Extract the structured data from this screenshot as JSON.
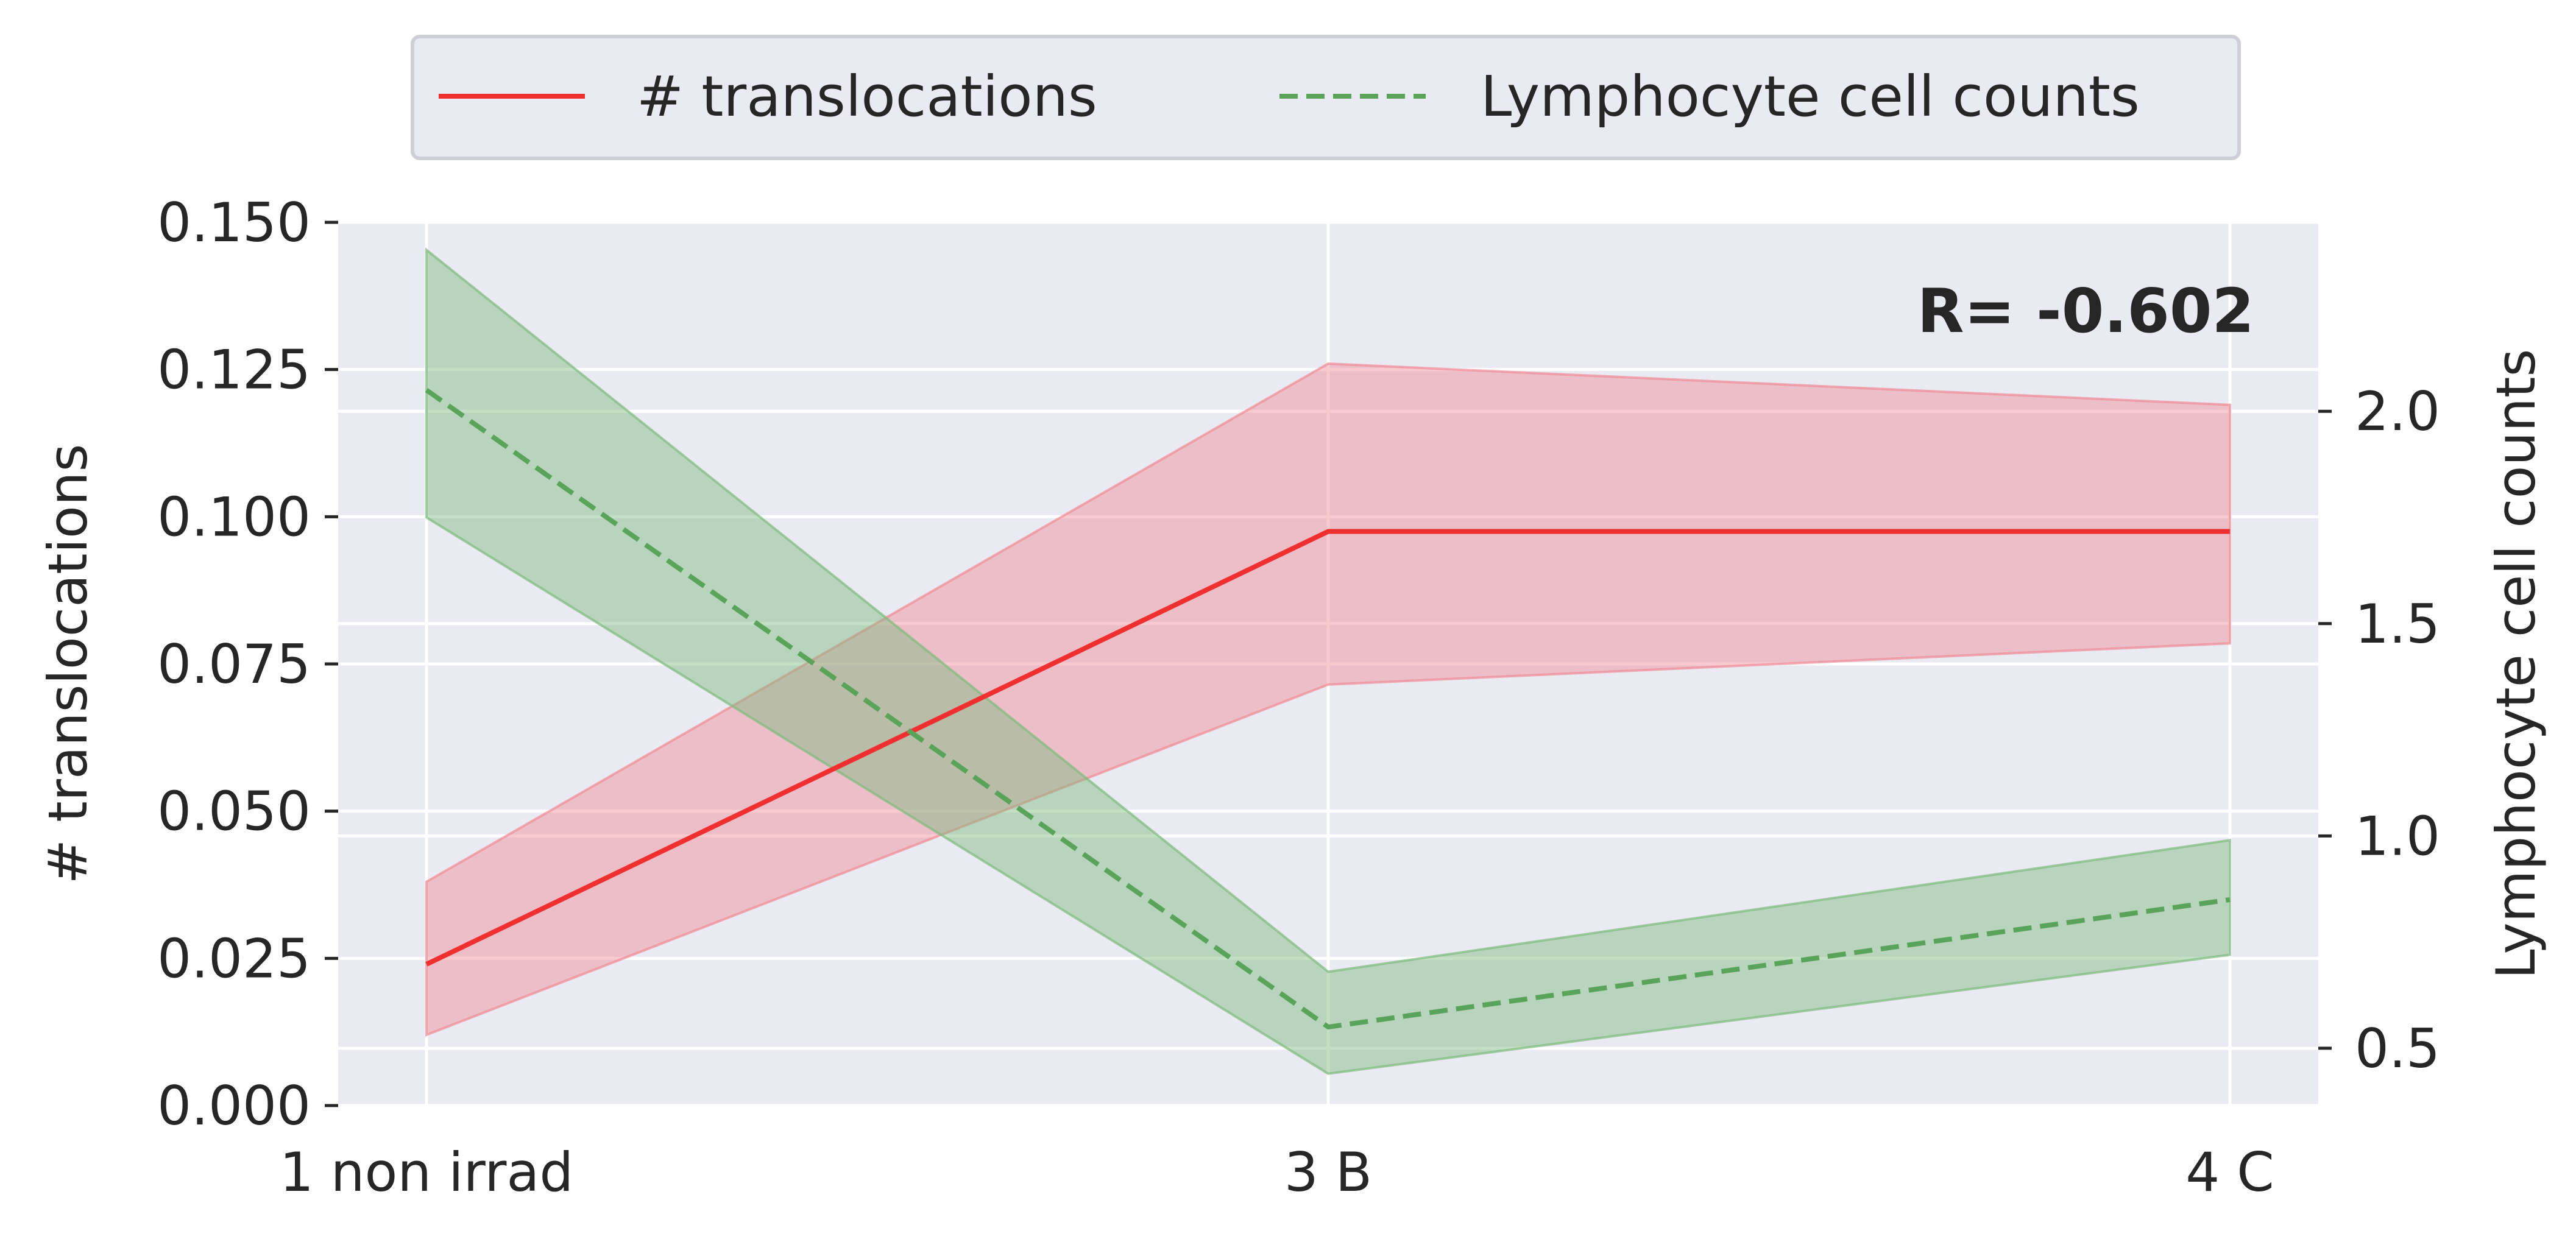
{
  "chart_data": {
    "type": "line",
    "categories": [
      "1 non irrad",
      "3 B",
      "4 C"
    ],
    "series": [
      {
        "name": "# translocations",
        "axis": "left",
        "color": "#f03030",
        "style": "solid",
        "values": [
          0.024,
          0.0975,
          0.0975
        ],
        "ci_lower": [
          0.012,
          0.0715,
          0.0785
        ],
        "ci_upper": [
          0.038,
          0.126,
          0.119
        ],
        "band_color": "#f08a95"
      },
      {
        "name": "Lymphocyte cell counts",
        "axis": "right",
        "color": "#5aa35a",
        "style": "dashed",
        "values": [
          2.05,
          0.55,
          0.85
        ],
        "ci_lower": [
          1.75,
          0.44,
          0.72
        ],
        "ci_upper": [
          2.38,
          0.68,
          0.99
        ],
        "band_color": "#7dbb7d"
      }
    ],
    "left_axis": {
      "label": "# translocations",
      "ylim": [
        0,
        0.15
      ],
      "ticks": [
        0,
        0.025,
        0.05,
        0.075,
        0.1,
        0.125,
        0.15
      ],
      "tick_labels": [
        "0.000",
        "0.025",
        "0.050",
        "0.075",
        "0.100",
        "0.125",
        "0.150"
      ]
    },
    "right_axis": {
      "label": "Lymphocyte cell counts",
      "ylim": [
        0.365,
        2.445
      ],
      "ticks": [
        0.5,
        1.0,
        1.5,
        2.0
      ],
      "tick_labels": [
        "0.5",
        "1.0",
        "1.5",
        "2.0"
      ]
    },
    "annotation": "R= -0.602",
    "grid": true,
    "legend_position": "top-center",
    "background": "#eaeaf2"
  }
}
